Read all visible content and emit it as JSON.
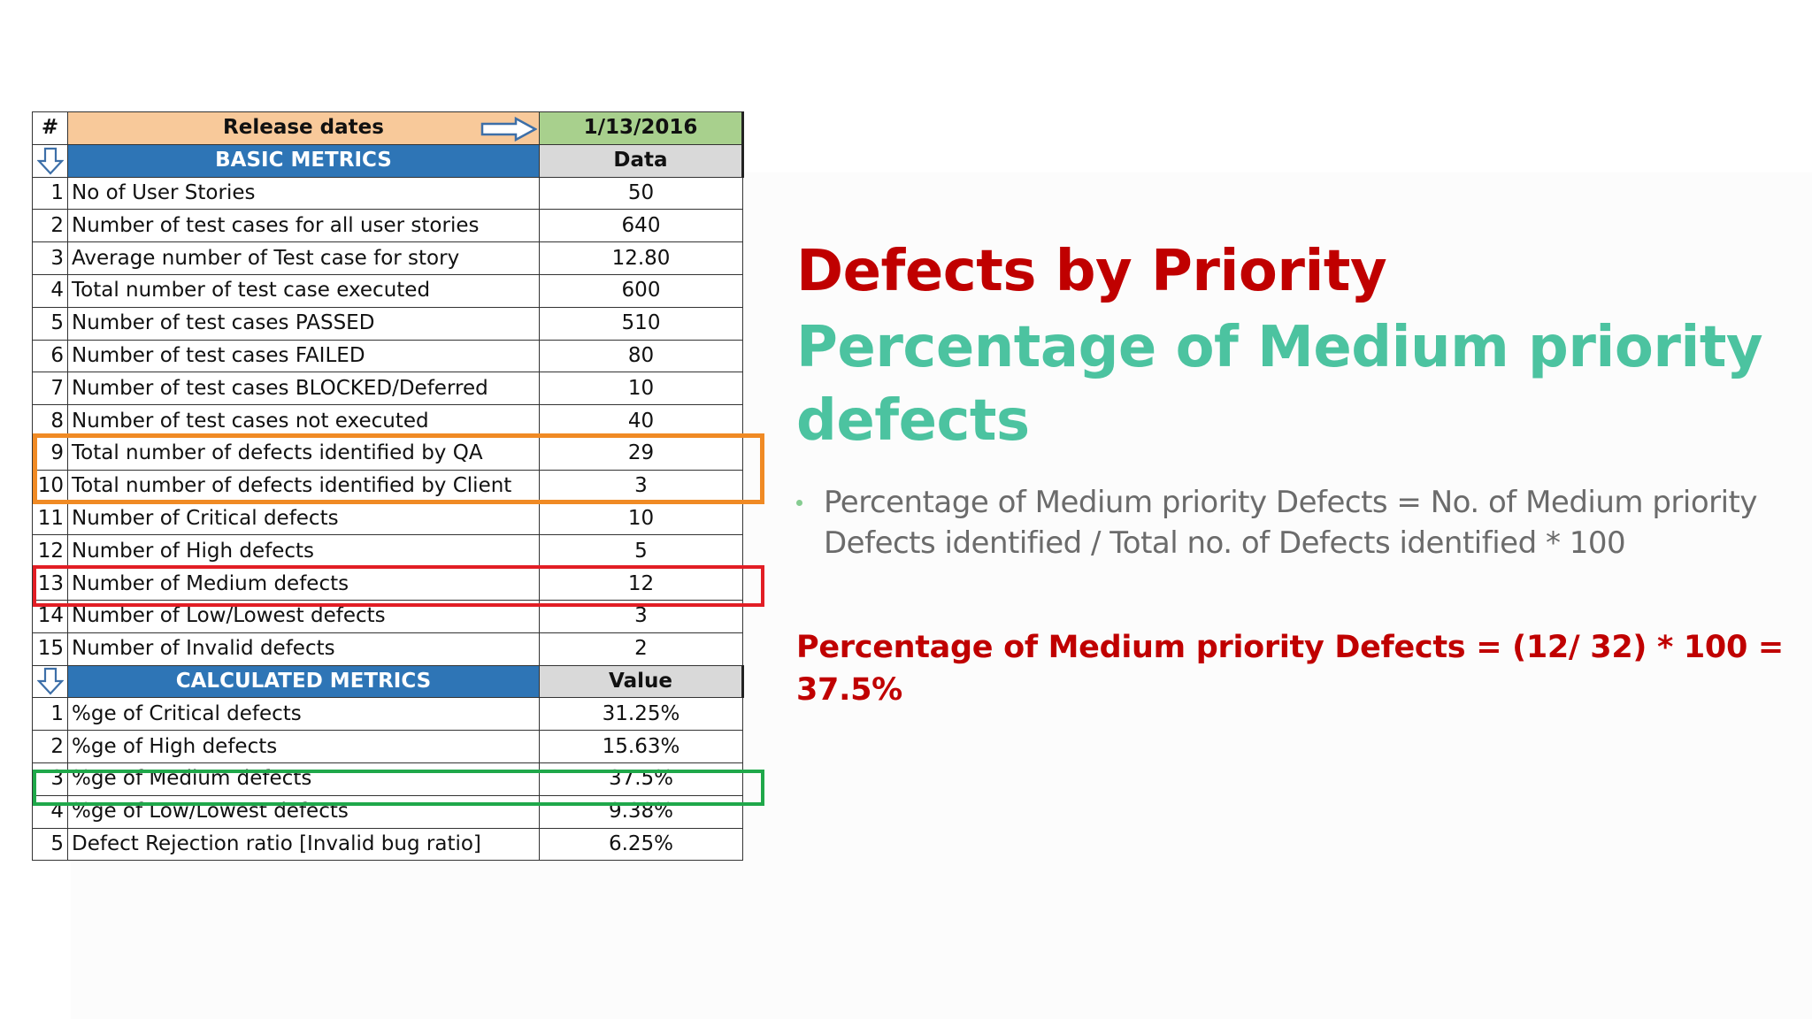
{
  "sheet": {
    "header": {
      "num_label": "#",
      "release_label": "Release dates",
      "release_date": "1/13/2016"
    },
    "basic_section": {
      "title": "BASIC METRICS",
      "value_header": "Data",
      "rows": [
        {
          "num": "1",
          "label": "No of User Stories",
          "value": "50"
        },
        {
          "num": "2",
          "label": "Number  of test cases for all user stories",
          "value": "640"
        },
        {
          "num": "3",
          "label": "Average number of Test case for story",
          "value": "12.80"
        },
        {
          "num": "4",
          "label": "Total number of test case executed",
          "value": "600"
        },
        {
          "num": "5",
          "label": "Number of test cases PASSED",
          "value": "510"
        },
        {
          "num": "6",
          "label": "Number of  test cases FAILED",
          "value": "80"
        },
        {
          "num": "7",
          "label": "Number of test cases BLOCKED/Deferred",
          "value": "10"
        },
        {
          "num": "8",
          "label": "Number of test cases not executed",
          "value": "40"
        },
        {
          "num": "9",
          "label": "Total number of defects identified by QA",
          "value": "29"
        },
        {
          "num": "10",
          "label": "Total number of defects identified by Client",
          "value": "3"
        },
        {
          "num": "11",
          "label": "Number of Critical defects",
          "value": "10"
        },
        {
          "num": "12",
          "label": "Number of High defects",
          "value": "5"
        },
        {
          "num": "13",
          "label": "Number of Medium defects",
          "value": "12"
        },
        {
          "num": "14",
          "label": "Number of Low/Lowest defects",
          "value": "3"
        },
        {
          "num": "15",
          "label": "Number of Invalid defects",
          "value": "2"
        }
      ]
    },
    "calc_section": {
      "title": "CALCULATED METRICS",
      "value_header": "Value",
      "rows": [
        {
          "num": "1",
          "label": "%ge of Critical defects",
          "value": "31.25%"
        },
        {
          "num": "2",
          "label": "%ge of High defects",
          "value": "15.63%"
        },
        {
          "num": "3",
          "label": "%ge of Medium defects",
          "value": "37.5%"
        },
        {
          "num": "4",
          "label": "%ge of Low/Lowest defects",
          "value": "9.38%"
        },
        {
          "num": "5",
          "label": "Defect Rejection ratio [Invalid bug ratio]",
          "value": "6.25%"
        }
      ]
    }
  },
  "highlights": {
    "client_qa_box_color": "#f08a24",
    "medium_defects_box_color": "#e21e25",
    "medium_pct_box_color": "#1fa84a"
  },
  "slide": {
    "title": "Defects by Priority",
    "subtitle": "Percentage of Medium priority defects",
    "bullet": "Percentage of Medium priority Defects = No. of Medium priority Defects identified / Total no. of Defects identified * 100",
    "result": "Percentage of Medium priority Defects = (12/ 32) * 100 = 37.5%"
  },
  "colors": {
    "title": "#c00000",
    "subtitle": "#4cc3a0",
    "bullet_text": "#6b6b6b",
    "section_header": "#2e75b6",
    "release_header": "#f8c99a",
    "date_header": "#a8d08d"
  }
}
